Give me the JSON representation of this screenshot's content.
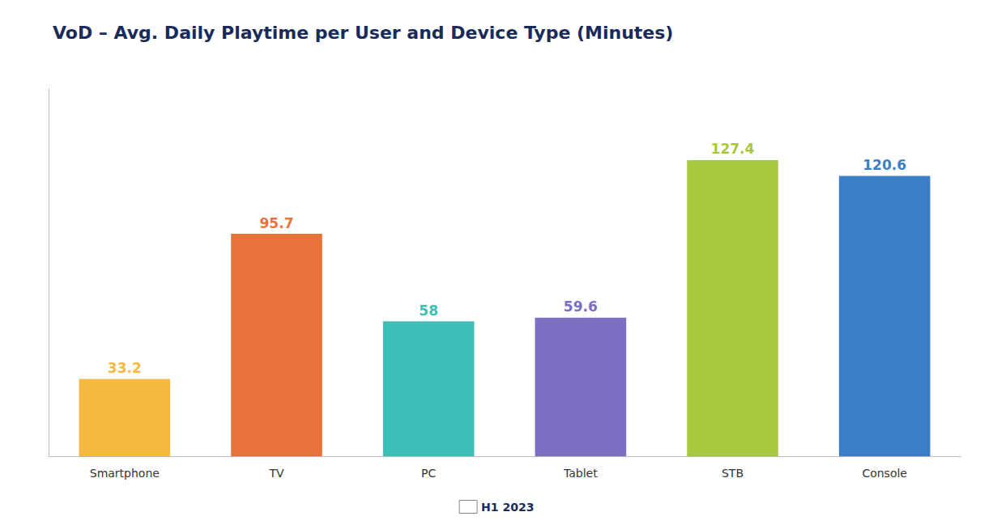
{
  "chart_data": {
    "type": "bar",
    "title": "VoD – Avg. Daily Playtime per User and Device Type (Minutes)",
    "categories": [
      "Smartphone",
      "TV",
      "PC",
      "Tablet",
      "STB",
      "Console"
    ],
    "series": [
      {
        "name": "H1 2023",
        "values": [
          33.2,
          95.7,
          58.0,
          59.6,
          127.4,
          120.6
        ],
        "colors": [
          "#F5B942",
          "#E8733A",
          "#3DBFB8",
          "#7B6FC4",
          "#A8C840",
          "#3A7EC8"
        ]
      }
    ],
    "ylim": [
      0,
      158
    ],
    "grid": false,
    "legend": "bottom",
    "data_labels": true,
    "tick_labels": "x"
  }
}
